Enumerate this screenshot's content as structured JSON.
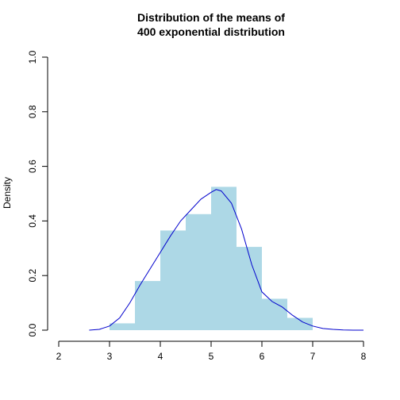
{
  "chart_data": {
    "type": "bar",
    "title_lines": [
      "Distribution of the means of",
      "400 exponential distribution"
    ],
    "xlabel": "",
    "ylabel": "Density",
    "xlim": [
      2,
      8
    ],
    "ylim": [
      0,
      1
    ],
    "x_ticks": [
      2,
      3,
      4,
      5,
      6,
      7,
      8
    ],
    "y_ticks": [
      0.0,
      0.2,
      0.4,
      0.6,
      0.8,
      1.0
    ],
    "y_tick_labels": [
      "0.0",
      "0.2",
      "0.4",
      "0.6",
      "0.8",
      "1.0"
    ],
    "histogram": {
      "bin_edges": [
        3.0,
        3.5,
        4.0,
        4.5,
        5.0,
        5.5,
        6.0,
        6.5,
        7.0
      ],
      "density": [
        0.025,
        0.18,
        0.365,
        0.425,
        0.525,
        0.305,
        0.115,
        0.045
      ]
    },
    "density_curve": {
      "x": [
        2.6,
        2.8,
        3.0,
        3.2,
        3.4,
        3.6,
        3.8,
        4.0,
        4.2,
        4.4,
        4.6,
        4.8,
        5.0,
        5.1,
        5.2,
        5.4,
        5.6,
        5.8,
        6.0,
        6.2,
        6.4,
        6.6,
        6.8,
        7.0,
        7.2,
        7.4,
        7.6,
        7.8,
        8.0
      ],
      "y": [
        0.0,
        0.003,
        0.015,
        0.045,
        0.1,
        0.165,
        0.225,
        0.285,
        0.345,
        0.4,
        0.44,
        0.48,
        0.505,
        0.515,
        0.51,
        0.465,
        0.37,
        0.24,
        0.14,
        0.105,
        0.085,
        0.055,
        0.03,
        0.015,
        0.006,
        0.003,
        0.001,
        0.0,
        0.0
      ]
    },
    "colors": {
      "bars": "#add8e6",
      "curve": "#0000cd",
      "axis": "#000000"
    },
    "grid": false,
    "legend": "none"
  }
}
